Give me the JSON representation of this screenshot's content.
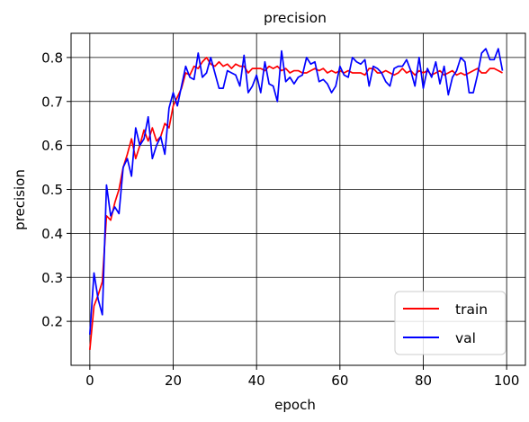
{
  "chart_data": {
    "type": "line",
    "title": "precision",
    "xlabel": "epoch",
    "ylabel": "precision",
    "xlim": [
      -4.5,
      104.5
    ],
    "ylim": [
      0.1,
      0.855
    ],
    "xticks": [
      0,
      20,
      40,
      60,
      80,
      100
    ],
    "yticks": [
      0.2,
      0.3,
      0.4,
      0.5,
      0.6,
      0.7,
      0.8
    ],
    "xtick_labels": [
      "0",
      "20",
      "40",
      "60",
      "80",
      "100"
    ],
    "ytick_labels": [
      "0.2",
      "0.3",
      "0.4",
      "0.5",
      "0.6",
      "0.7",
      "0.8"
    ],
    "grid": true,
    "legend_position": "lower-right",
    "series": [
      {
        "name": "train",
        "color": "#ff0000",
        "values": [
          0.135,
          0.235,
          0.26,
          0.29,
          0.44,
          0.43,
          0.47,
          0.5,
          0.55,
          0.58,
          0.615,
          0.57,
          0.6,
          0.635,
          0.61,
          0.64,
          0.61,
          0.62,
          0.65,
          0.64,
          0.69,
          0.71,
          0.73,
          0.765,
          0.76,
          0.78,
          0.775,
          0.79,
          0.8,
          0.785,
          0.78,
          0.79,
          0.78,
          0.785,
          0.775,
          0.785,
          0.78,
          0.78,
          0.765,
          0.775,
          0.775,
          0.775,
          0.77,
          0.78,
          0.775,
          0.78,
          0.77,
          0.775,
          0.765,
          0.77,
          0.77,
          0.765,
          0.765,
          0.77,
          0.775,
          0.77,
          0.775,
          0.765,
          0.77,
          0.765,
          0.77,
          0.765,
          0.77,
          0.765,
          0.765,
          0.765,
          0.76,
          0.775,
          0.775,
          0.765,
          0.765,
          0.77,
          0.765,
          0.76,
          0.765,
          0.775,
          0.765,
          0.77,
          0.76,
          0.77,
          0.765,
          0.77,
          0.76,
          0.765,
          0.77,
          0.76,
          0.765,
          0.77,
          0.76,
          0.765,
          0.76,
          0.765,
          0.77,
          0.775,
          0.765,
          0.765,
          0.775,
          0.775,
          0.77,
          0.765
        ]
      },
      {
        "name": "val",
        "color": "#0000ff",
        "values": [
          0.17,
          0.31,
          0.25,
          0.215,
          0.51,
          0.44,
          0.46,
          0.445,
          0.55,
          0.57,
          0.53,
          0.64,
          0.6,
          0.615,
          0.665,
          0.57,
          0.6,
          0.62,
          0.58,
          0.685,
          0.72,
          0.69,
          0.735,
          0.78,
          0.755,
          0.75,
          0.81,
          0.755,
          0.765,
          0.8,
          0.765,
          0.73,
          0.73,
          0.77,
          0.765,
          0.76,
          0.735,
          0.805,
          0.72,
          0.735,
          0.76,
          0.72,
          0.79,
          0.74,
          0.735,
          0.7,
          0.815,
          0.745,
          0.755,
          0.74,
          0.755,
          0.76,
          0.8,
          0.785,
          0.79,
          0.745,
          0.75,
          0.74,
          0.72,
          0.735,
          0.78,
          0.76,
          0.755,
          0.8,
          0.79,
          0.785,
          0.795,
          0.735,
          0.78,
          0.775,
          0.765,
          0.745,
          0.735,
          0.775,
          0.78,
          0.78,
          0.795,
          0.77,
          0.735,
          0.8,
          0.73,
          0.775,
          0.755,
          0.79,
          0.74,
          0.78,
          0.715,
          0.755,
          0.77,
          0.8,
          0.79,
          0.72,
          0.72,
          0.76,
          0.81,
          0.82,
          0.795,
          0.795,
          0.82,
          0.77
        ]
      }
    ]
  }
}
